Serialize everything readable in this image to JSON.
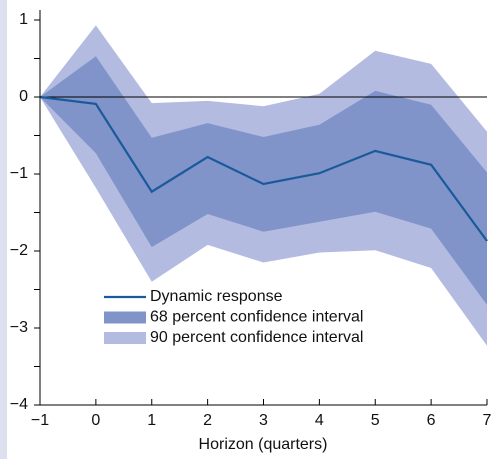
{
  "chart_data": {
    "type": "line",
    "x_label": "Horizon (quarters)",
    "x": [
      -1,
      0,
      1,
      2,
      3,
      4,
      5,
      6,
      7
    ],
    "bands": [
      {
        "name": "90 percent confidence interval",
        "color": "#b3bbe0",
        "upper": [
          0,
          0.93,
          -0.08,
          -0.05,
          -0.12,
          0.04,
          0.6,
          0.43,
          -0.45
        ],
        "lower": [
          0,
          -1.18,
          -2.4,
          -1.92,
          -2.15,
          -2.02,
          -1.99,
          -2.22,
          -3.23
        ]
      },
      {
        "name": "68 percent confidence interval",
        "color": "#8094c9",
        "upper": [
          0,
          0.53,
          -0.53,
          -0.34,
          -0.52,
          -0.36,
          0.08,
          -0.1,
          -0.98
        ],
        "lower": [
          0,
          -0.73,
          -1.95,
          -1.52,
          -1.75,
          -1.62,
          -1.49,
          -1.71,
          -2.7
        ]
      }
    ],
    "series": [
      {
        "name": "Dynamic response",
        "color": "#1a5a9b",
        "values": [
          0,
          -0.09,
          -1.23,
          -0.78,
          -1.13,
          -0.99,
          -0.7,
          -0.88,
          -1.87
        ]
      }
    ],
    "xlim": [
      -1,
      7
    ],
    "xticks": [
      {
        "value": -1,
        "label": "−1"
      },
      0,
      1,
      2,
      3,
      4,
      5,
      6,
      7
    ],
    "ylim": [
      -4,
      1
    ],
    "yticks": [
      1,
      0,
      {
        "value": -1,
        "label": "−1"
      },
      {
        "value": -2,
        "label": "−2"
      },
      {
        "value": -3,
        "label": "−3"
      },
      {
        "value": -4,
        "label": "−4"
      }
    ],
    "minor_yticks": [
      0.5,
      -0.5,
      -1.5,
      -2.5,
      -3.5
    ],
    "zero_line": true,
    "legend": "lower left"
  }
}
